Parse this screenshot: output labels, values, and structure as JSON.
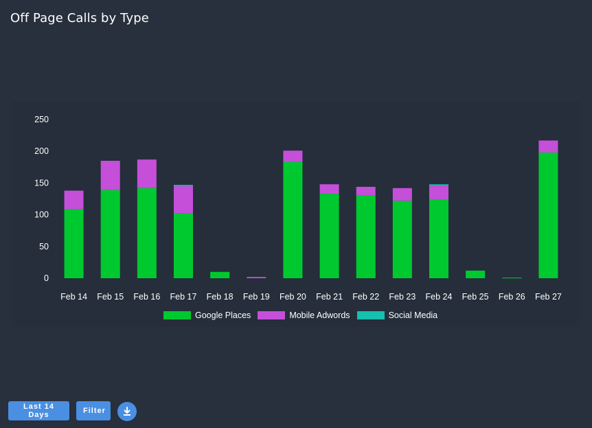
{
  "page": {
    "title": "Off Page Calls by Type"
  },
  "controls": {
    "range_label": "Last 14 Days",
    "filter_label": "Filter",
    "download_icon": "download-icon"
  },
  "colors": {
    "background": "#27303c",
    "accent": "#4a8fe2",
    "google_places": "#00c92f",
    "mobile_adwords": "#c54fd9",
    "social_media": "#16bfae"
  },
  "chart_data": {
    "type": "bar",
    "stacked": true,
    "categories": [
      "Feb 14",
      "Feb 15",
      "Feb 16",
      "Feb 17",
      "Feb 18",
      "Feb 19",
      "Feb 20",
      "Feb 21",
      "Feb 22",
      "Feb 23",
      "Feb 24",
      "Feb 25",
      "Feb 26",
      "Feb 27"
    ],
    "series": [
      {
        "name": "Google Places",
        "color": "#00c92f",
        "values": [
          109,
          139,
          142,
          102,
          10,
          0,
          183,
          133,
          131,
          122,
          124,
          12,
          1,
          198
        ]
      },
      {
        "name": "Mobile Adwords",
        "color": "#c54fd9",
        "values": [
          29,
          46,
          45,
          43,
          0,
          2,
          18,
          15,
          13,
          20,
          22,
          0,
          0,
          19
        ]
      },
      {
        "name": "Social Media",
        "color": "#16bfae",
        "values": [
          0,
          0,
          0,
          2,
          0,
          0,
          0,
          0,
          0,
          0,
          2,
          0,
          0,
          0
        ]
      }
    ],
    "yticks": [
      0,
      50,
      100,
      150,
      200,
      250
    ],
    "ylim": [
      0,
      250
    ],
    "grid": false,
    "legend_position": "bottom"
  }
}
